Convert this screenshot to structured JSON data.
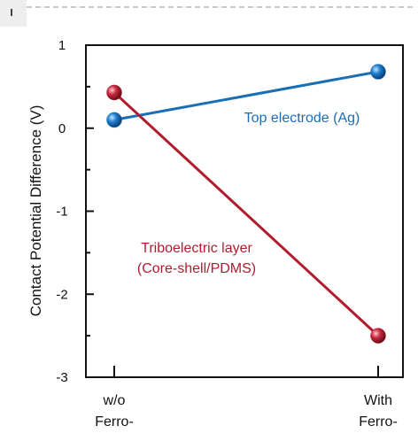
{
  "chart_data": {
    "type": "line",
    "categories": [
      "w/o\nFerro-",
      "With\nFerro-"
    ],
    "category_lines": [
      [
        "w/o",
        "Ferro-"
      ],
      [
        "With",
        "Ferro-"
      ]
    ],
    "ylabel": "Contact Potential Difference (V)",
    "ylim": [
      -3,
      1
    ],
    "yticks": [
      1,
      0,
      -1,
      -2,
      -3
    ],
    "series": [
      {
        "name": "Top electrode (Ag)",
        "values": [
          0.1,
          0.68
        ],
        "color": "#1a6eb5",
        "label_lines": [
          "Top electrode (Ag)"
        ]
      },
      {
        "name": "Triboelectric layer (Core-shell/PDMS)",
        "values": [
          0.43,
          -2.5
        ],
        "color": "#b01c2e",
        "label_lines": [
          "Triboelectric layer",
          "(Core-shell/PDMS)"
        ]
      }
    ],
    "grid": false,
    "legend": "inline"
  }
}
